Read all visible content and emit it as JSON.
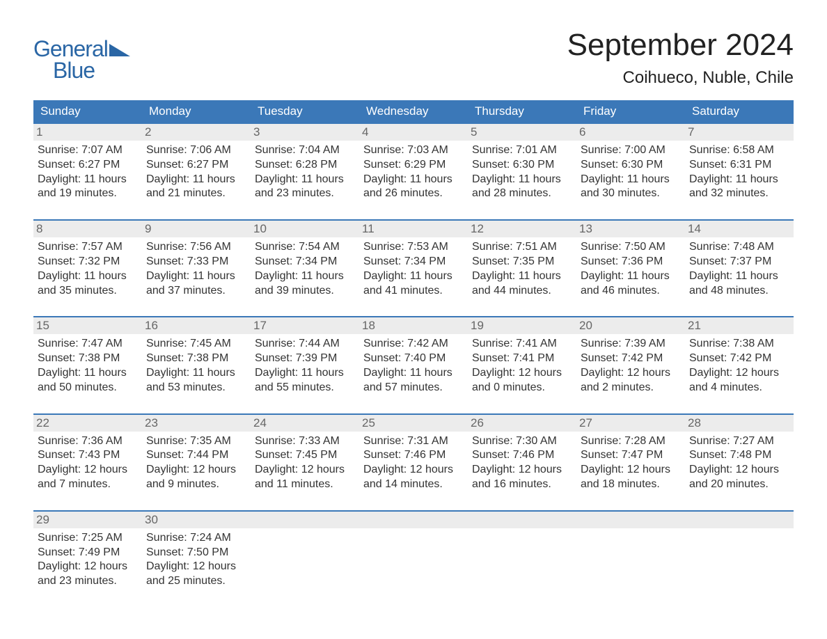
{
  "logo": {
    "word1": "General",
    "word2": "Blue",
    "text_color": "#2a66a5",
    "triangle_color": "#2a66a5"
  },
  "title": "September 2024",
  "location": "Coihueco, Nuble, Chile",
  "colors": {
    "header_bg": "#3b78b8",
    "header_text": "#ffffff",
    "daynum_bg": "#ececec",
    "daynum_text": "#666666",
    "body_text": "#333333",
    "row_border": "#3b78b8",
    "page_bg": "#ffffff"
  },
  "fonts": {
    "title_size_pt": 33,
    "location_size_pt": 18,
    "dow_size_pt": 13,
    "body_size_pt": 12
  },
  "calendar": {
    "columns": 7,
    "day_names": [
      "Sunday",
      "Monday",
      "Tuesday",
      "Wednesday",
      "Thursday",
      "Friday",
      "Saturday"
    ],
    "weeks": [
      [
        {
          "num": "1",
          "sunrise": "Sunrise: 7:07 AM",
          "sunset": "Sunset: 6:27 PM",
          "dl1": "Daylight: 11 hours",
          "dl2": "and 19 minutes."
        },
        {
          "num": "2",
          "sunrise": "Sunrise: 7:06 AM",
          "sunset": "Sunset: 6:27 PM",
          "dl1": "Daylight: 11 hours",
          "dl2": "and 21 minutes."
        },
        {
          "num": "3",
          "sunrise": "Sunrise: 7:04 AM",
          "sunset": "Sunset: 6:28 PM",
          "dl1": "Daylight: 11 hours",
          "dl2": "and 23 minutes."
        },
        {
          "num": "4",
          "sunrise": "Sunrise: 7:03 AM",
          "sunset": "Sunset: 6:29 PM",
          "dl1": "Daylight: 11 hours",
          "dl2": "and 26 minutes."
        },
        {
          "num": "5",
          "sunrise": "Sunrise: 7:01 AM",
          "sunset": "Sunset: 6:30 PM",
          "dl1": "Daylight: 11 hours",
          "dl2": "and 28 minutes."
        },
        {
          "num": "6",
          "sunrise": "Sunrise: 7:00 AM",
          "sunset": "Sunset: 6:30 PM",
          "dl1": "Daylight: 11 hours",
          "dl2": "and 30 minutes."
        },
        {
          "num": "7",
          "sunrise": "Sunrise: 6:58 AM",
          "sunset": "Sunset: 6:31 PM",
          "dl1": "Daylight: 11 hours",
          "dl2": "and 32 minutes."
        }
      ],
      [
        {
          "num": "8",
          "sunrise": "Sunrise: 7:57 AM",
          "sunset": "Sunset: 7:32 PM",
          "dl1": "Daylight: 11 hours",
          "dl2": "and 35 minutes."
        },
        {
          "num": "9",
          "sunrise": "Sunrise: 7:56 AM",
          "sunset": "Sunset: 7:33 PM",
          "dl1": "Daylight: 11 hours",
          "dl2": "and 37 minutes."
        },
        {
          "num": "10",
          "sunrise": "Sunrise: 7:54 AM",
          "sunset": "Sunset: 7:34 PM",
          "dl1": "Daylight: 11 hours",
          "dl2": "and 39 minutes."
        },
        {
          "num": "11",
          "sunrise": "Sunrise: 7:53 AM",
          "sunset": "Sunset: 7:34 PM",
          "dl1": "Daylight: 11 hours",
          "dl2": "and 41 minutes."
        },
        {
          "num": "12",
          "sunrise": "Sunrise: 7:51 AM",
          "sunset": "Sunset: 7:35 PM",
          "dl1": "Daylight: 11 hours",
          "dl2": "and 44 minutes."
        },
        {
          "num": "13",
          "sunrise": "Sunrise: 7:50 AM",
          "sunset": "Sunset: 7:36 PM",
          "dl1": "Daylight: 11 hours",
          "dl2": "and 46 minutes."
        },
        {
          "num": "14",
          "sunrise": "Sunrise: 7:48 AM",
          "sunset": "Sunset: 7:37 PM",
          "dl1": "Daylight: 11 hours",
          "dl2": "and 48 minutes."
        }
      ],
      [
        {
          "num": "15",
          "sunrise": "Sunrise: 7:47 AM",
          "sunset": "Sunset: 7:38 PM",
          "dl1": "Daylight: 11 hours",
          "dl2": "and 50 minutes."
        },
        {
          "num": "16",
          "sunrise": "Sunrise: 7:45 AM",
          "sunset": "Sunset: 7:38 PM",
          "dl1": "Daylight: 11 hours",
          "dl2": "and 53 minutes."
        },
        {
          "num": "17",
          "sunrise": "Sunrise: 7:44 AM",
          "sunset": "Sunset: 7:39 PM",
          "dl1": "Daylight: 11 hours",
          "dl2": "and 55 minutes."
        },
        {
          "num": "18",
          "sunrise": "Sunrise: 7:42 AM",
          "sunset": "Sunset: 7:40 PM",
          "dl1": "Daylight: 11 hours",
          "dl2": "and 57 minutes."
        },
        {
          "num": "19",
          "sunrise": "Sunrise: 7:41 AM",
          "sunset": "Sunset: 7:41 PM",
          "dl1": "Daylight: 12 hours",
          "dl2": "and 0 minutes."
        },
        {
          "num": "20",
          "sunrise": "Sunrise: 7:39 AM",
          "sunset": "Sunset: 7:42 PM",
          "dl1": "Daylight: 12 hours",
          "dl2": "and 2 minutes."
        },
        {
          "num": "21",
          "sunrise": "Sunrise: 7:38 AM",
          "sunset": "Sunset: 7:42 PM",
          "dl1": "Daylight: 12 hours",
          "dl2": "and 4 minutes."
        }
      ],
      [
        {
          "num": "22",
          "sunrise": "Sunrise: 7:36 AM",
          "sunset": "Sunset: 7:43 PM",
          "dl1": "Daylight: 12 hours",
          "dl2": "and 7 minutes."
        },
        {
          "num": "23",
          "sunrise": "Sunrise: 7:35 AM",
          "sunset": "Sunset: 7:44 PM",
          "dl1": "Daylight: 12 hours",
          "dl2": "and 9 minutes."
        },
        {
          "num": "24",
          "sunrise": "Sunrise: 7:33 AM",
          "sunset": "Sunset: 7:45 PM",
          "dl1": "Daylight: 12 hours",
          "dl2": "and 11 minutes."
        },
        {
          "num": "25",
          "sunrise": "Sunrise: 7:31 AM",
          "sunset": "Sunset: 7:46 PM",
          "dl1": "Daylight: 12 hours",
          "dl2": "and 14 minutes."
        },
        {
          "num": "26",
          "sunrise": "Sunrise: 7:30 AM",
          "sunset": "Sunset: 7:46 PM",
          "dl1": "Daylight: 12 hours",
          "dl2": "and 16 minutes."
        },
        {
          "num": "27",
          "sunrise": "Sunrise: 7:28 AM",
          "sunset": "Sunset: 7:47 PM",
          "dl1": "Daylight: 12 hours",
          "dl2": "and 18 minutes."
        },
        {
          "num": "28",
          "sunrise": "Sunrise: 7:27 AM",
          "sunset": "Sunset: 7:48 PM",
          "dl1": "Daylight: 12 hours",
          "dl2": "and 20 minutes."
        }
      ],
      [
        {
          "num": "29",
          "sunrise": "Sunrise: 7:25 AM",
          "sunset": "Sunset: 7:49 PM",
          "dl1": "Daylight: 12 hours",
          "dl2": "and 23 minutes."
        },
        {
          "num": "30",
          "sunrise": "Sunrise: 7:24 AM",
          "sunset": "Sunset: 7:50 PM",
          "dl1": "Daylight: 12 hours",
          "dl2": "and 25 minutes."
        },
        {
          "empty": true
        },
        {
          "empty": true
        },
        {
          "empty": true
        },
        {
          "empty": true
        },
        {
          "empty": true
        }
      ]
    ]
  }
}
